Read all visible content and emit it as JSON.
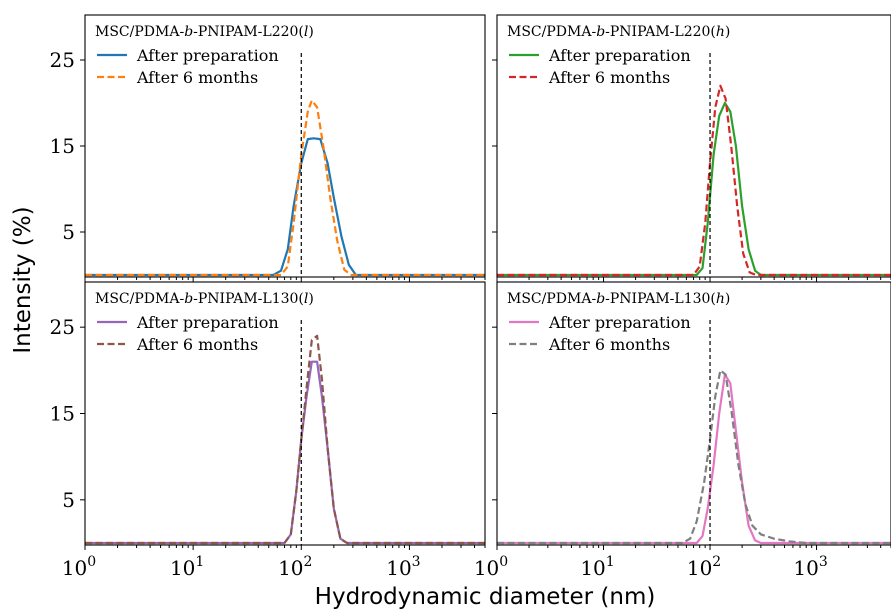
{
  "chart_data": {
    "type": "line",
    "xlabel": "Hydrodynamic diameter (nm)",
    "ylabel": "Intensity (%)",
    "xscale": "log",
    "xlim": [
      1,
      5000
    ],
    "ylim": [
      0,
      30
    ],
    "x_ticks": [
      1,
      10,
      100,
      1000
    ],
    "x_tick_labels": [
      "10^0",
      "10^1",
      "10^2",
      "10^3"
    ],
    "y_ticks": [
      5,
      15,
      25
    ],
    "y_tick_labels": [
      "5",
      "15",
      "25"
    ],
    "reference_line_x": 100,
    "grid": false,
    "legend_position": "top-left",
    "panels": [
      {
        "title": {
          "prefix": "MSC/PDMA-",
          "italic": "b",
          "mid": "-PNIPAM-L220(",
          "italic2": "l",
          "suffix": ")"
        },
        "series": [
          {
            "name": "After preparation",
            "color": "#1f77b4",
            "style": "solid",
            "x": [
              1,
              55,
              65,
              75,
              85,
              100,
              115,
              130,
              150,
              175,
              200,
              235,
              275,
              320,
              380,
              5000
            ],
            "y": [
              0,
              0,
              0.5,
              3,
              8,
              13,
              15.8,
              15.9,
              15.8,
              13,
              9,
              4.5,
              1.2,
              0,
              0,
              0
            ]
          },
          {
            "name": "After 6 months",
            "color": "#ff7f0e",
            "style": "dashed",
            "x": [
              1,
              65,
              75,
              85,
              100,
              115,
              125,
              140,
              160,
              185,
              215,
              250,
              290,
              5000
            ],
            "y": [
              0,
              0,
              1,
              6,
              14,
              19,
              20.3,
              19.5,
              15,
              9,
              4,
              0.6,
              0,
              0
            ]
          }
        ]
      },
      {
        "title": {
          "prefix": "MSC/PDMA-",
          "italic": "b",
          "mid": "-PNIPAM-L220(",
          "italic2": "h",
          "suffix": ")"
        },
        "series": [
          {
            "name": "After preparation",
            "color": "#2ca02c",
            "style": "solid",
            "x": [
              1,
              75,
              85,
              95,
              108,
              122,
              138,
              155,
              175,
              200,
              230,
              265,
              300,
              5000
            ],
            "y": [
              0,
              0,
              0.8,
              6,
              14,
              18.5,
              20,
              19,
              15,
              8,
              3,
              0.5,
              0,
              0
            ]
          },
          {
            "name": "After 6 months",
            "color": "#d62728",
            "style": "dashed",
            "x": [
              1,
              70,
              80,
              90,
              100,
              112,
              125,
              140,
              158,
              180,
              205,
              235,
              270,
              5000
            ],
            "y": [
              0,
              0,
              1,
              6,
              13,
              19.5,
              22,
              20.5,
              15,
              8,
              2.5,
              0.3,
              0,
              0
            ]
          }
        ]
      },
      {
        "title": {
          "prefix": "MSC/PDMA-",
          "italic": "b",
          "mid": "-PNIPAM-L130(",
          "italic2": "l",
          "suffix": ")"
        },
        "series": [
          {
            "name": "After preparation",
            "color": "#9467bd",
            "style": "solid",
            "x": [
              1,
              70,
              80,
              90,
              100,
              112,
              125,
              140,
              155,
              175,
              200,
              230,
              265,
              5000
            ],
            "y": [
              0,
              0,
              1,
              6,
              12,
              17,
              21,
              21,
              17,
              11,
              4,
              0.5,
              0,
              0
            ]
          },
          {
            "name": "After 6 months",
            "color": "#8c564b",
            "style": "dashed",
            "x": [
              1,
              70,
              80,
              90,
              100,
              112,
              125,
              140,
              155,
              175,
              200,
              230,
              265,
              5000
            ],
            "y": [
              0,
              0,
              1,
              6,
              12,
              18,
              23.5,
              24,
              19,
              11,
              4,
              0.5,
              0,
              0
            ]
          }
        ]
      },
      {
        "title": {
          "prefix": "MSC/PDMA-",
          "italic": "b",
          "mid": "-PNIPAM-L130(",
          "italic2": "h",
          "suffix": ")"
        },
        "series": [
          {
            "name": "After preparation",
            "color": "#e377c2",
            "style": "solid",
            "x": [
              1,
              75,
              85,
              95,
              108,
              122,
              138,
              155,
              175,
              200,
              230,
              265,
              300,
              5000
            ],
            "y": [
              0,
              0,
              0.8,
              4,
              9,
              15,
              19.5,
              18.5,
              13,
              7,
              2,
              0.3,
              0,
              0
            ]
          },
          {
            "name": "After 6 months",
            "color": "#7f7f7f",
            "style": "dashed",
            "x": [
              1,
              55,
              65,
              75,
              88,
              100,
              112,
              125,
              140,
              160,
              185,
              215,
              250,
              300,
              400,
              550,
              800,
              5000
            ],
            "y": [
              0,
              0,
              0.5,
              2.5,
              7,
              12,
              17,
              20,
              19.5,
              15,
              9,
              4.5,
              2,
              1,
              0.5,
              0.2,
              0,
              0
            ]
          }
        ]
      }
    ]
  }
}
